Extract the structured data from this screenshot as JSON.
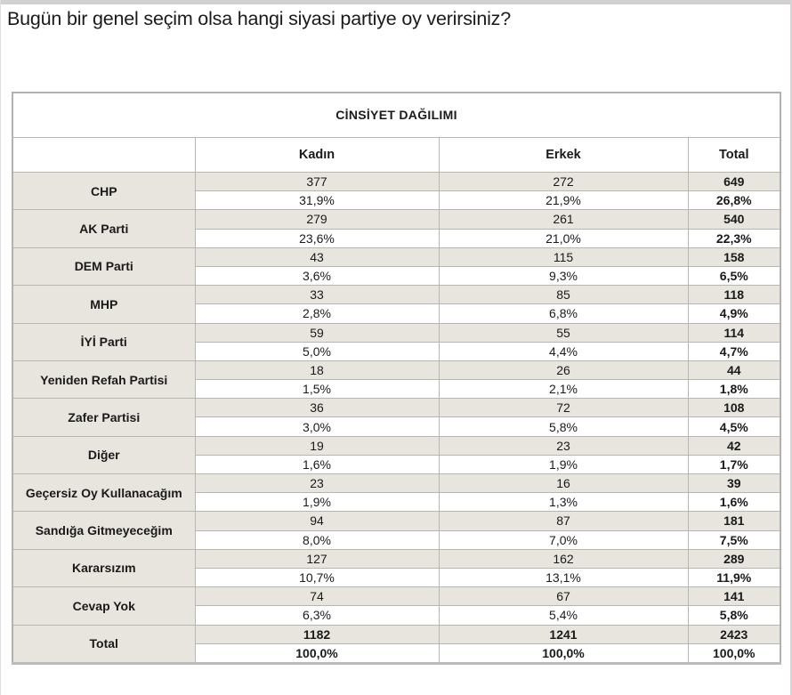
{
  "question": "Bugün bir genel seçim olsa hangi siyasi partiye oy verirsiniz?",
  "colors": {
    "title_navy": "#1F3864",
    "cell_beige": "#E8E5DF",
    "border_gray": "#B8B6B2",
    "top_strip_gray": "#D2D0D0"
  },
  "chart_data": {
    "type": "table",
    "title": "CİNSİYET DAĞILIMI",
    "question": "Bugün bir genel seçim olsa hangi siyasi partiye oy verirsiniz?",
    "columns": [
      "Kadın",
      "Erkek",
      "Total"
    ],
    "row_format": "each row shows counts [Kadın, Erkek, Total] and column percentages [Kadın, Erkek, Total]",
    "rows": [
      {
        "label": "CHP",
        "counts": [
          377,
          272,
          649
        ],
        "percents": [
          "31,9%",
          "21,9%",
          "26,8%"
        ]
      },
      {
        "label": "AK Parti",
        "counts": [
          279,
          261,
          540
        ],
        "percents": [
          "23,6%",
          "21,0%",
          "22,3%"
        ]
      },
      {
        "label": "DEM Parti",
        "counts": [
          43,
          115,
          158
        ],
        "percents": [
          "3,6%",
          "9,3%",
          "6,5%"
        ]
      },
      {
        "label": "MHP",
        "counts": [
          33,
          85,
          118
        ],
        "percents": [
          "2,8%",
          "6,8%",
          "4,9%"
        ]
      },
      {
        "label": "İYİ Parti",
        "counts": [
          59,
          55,
          114
        ],
        "percents": [
          "5,0%",
          "4,4%",
          "4,7%"
        ]
      },
      {
        "label": "Yeniden Refah Partisi",
        "counts": [
          18,
          26,
          44
        ],
        "percents": [
          "1,5%",
          "2,1%",
          "1,8%"
        ]
      },
      {
        "label": "Zafer Partisi",
        "counts": [
          36,
          72,
          108
        ],
        "percents": [
          "3,0%",
          "5,8%",
          "4,5%"
        ]
      },
      {
        "label": "Diğer",
        "counts": [
          19,
          23,
          42
        ],
        "percents": [
          "1,6%",
          "1,9%",
          "1,7%"
        ]
      },
      {
        "label": "Geçersiz Oy Kullanacağım",
        "counts": [
          23,
          16,
          39
        ],
        "percents": [
          "1,9%",
          "1,3%",
          "1,6%"
        ]
      },
      {
        "label": "Sandığa Gitmeyeceğim",
        "counts": [
          94,
          87,
          181
        ],
        "percents": [
          "8,0%",
          "7,0%",
          "7,5%"
        ]
      },
      {
        "label": "Kararsızım",
        "counts": [
          127,
          162,
          289
        ],
        "percents": [
          "10,7%",
          "13,1%",
          "11,9%"
        ]
      },
      {
        "label": "Cevap Yok",
        "counts": [
          74,
          67,
          141
        ],
        "percents": [
          "6,3%",
          "5,4%",
          "5,8%"
        ]
      },
      {
        "label": "Total",
        "counts": [
          1182,
          1241,
          2423
        ],
        "percents": [
          "100,0%",
          "100,0%",
          "100,0%"
        ]
      }
    ]
  }
}
